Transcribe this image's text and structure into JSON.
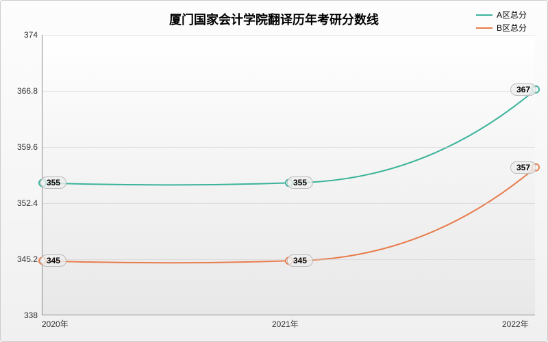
{
  "chart": {
    "type": "line",
    "title": "厦门国家会计学院翻译历年考研分数线",
    "title_fontsize": 18,
    "background_gradient": [
      "#fdfdfd",
      "#f0f0f0"
    ],
    "plot_gradient": [
      "#ffffff",
      "#e8e8e8"
    ],
    "grid_color": "#cccccc",
    "axis_color": "#888888",
    "x": {
      "categories": [
        "2020年",
        "2021年",
        "2022年"
      ]
    },
    "y": {
      "min": 338,
      "max": 374,
      "ticks": [
        338,
        345.2,
        352.4,
        359.6,
        366.8,
        374
      ]
    },
    "series": [
      {
        "name": "A区总分",
        "color": "#3bb39a",
        "values": [
          355,
          355,
          367
        ],
        "line_width": 2,
        "marker": "circle",
        "marker_size": 5
      },
      {
        "name": "B区总分",
        "color": "#e87c4c",
        "values": [
          345,
          345,
          357
        ],
        "line_width": 2,
        "marker": "circle",
        "marker_size": 5
      }
    ],
    "label_fontsize": 12,
    "legend_fontsize": 12
  }
}
